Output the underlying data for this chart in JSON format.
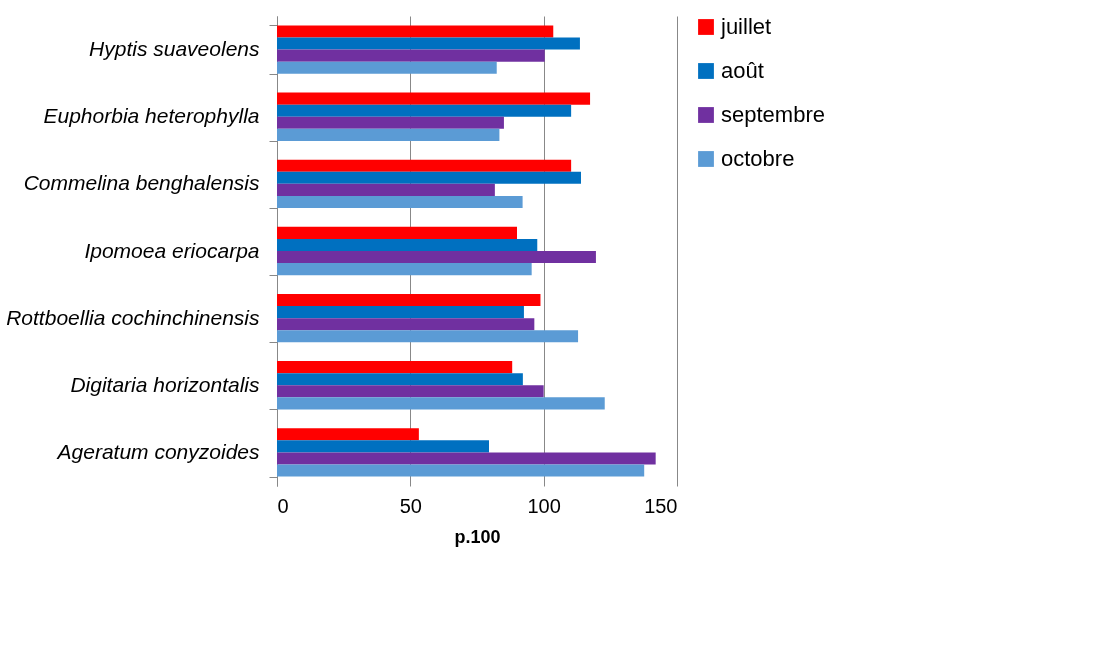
{
  "chart_data": {
    "type": "bar",
    "orientation": "horizontal",
    "xlabel": "p.100",
    "categories": [
      "Hyptis suaveolens",
      "Euphorbia heterophylla",
      "Commelina benghalensis",
      "Ipomoea eriocarpa",
      "Rottboellia cochinchinensis",
      "Digitaria horizontalis",
      "Ageratum conyzoides"
    ],
    "series": [
      {
        "name": "juillet",
        "color": "#ff0000",
        "values": [
          103.6,
          117.4,
          110.3,
          90,
          98.8,
          88.2,
          53.2
        ]
      },
      {
        "name": "août",
        "color": "#0070c0",
        "values": [
          113.6,
          110.3,
          114,
          97.6,
          92.6,
          92.2,
          79.5
        ]
      },
      {
        "name": "septembre",
        "color": "#7030a0",
        "values": [
          100.4,
          85.1,
          81.7,
          119.6,
          96.5,
          100,
          142
        ]
      },
      {
        "name": "octobre",
        "color": "#5b9bd5",
        "values": [
          82.4,
          83.4,
          92.1,
          95.5,
          112.9,
          122.9,
          137.7
        ]
      }
    ],
    "xlim": [
      0,
      150
    ],
    "xticks": [
      0,
      50,
      100,
      150
    ],
    "grid": "x",
    "legend": "right"
  }
}
